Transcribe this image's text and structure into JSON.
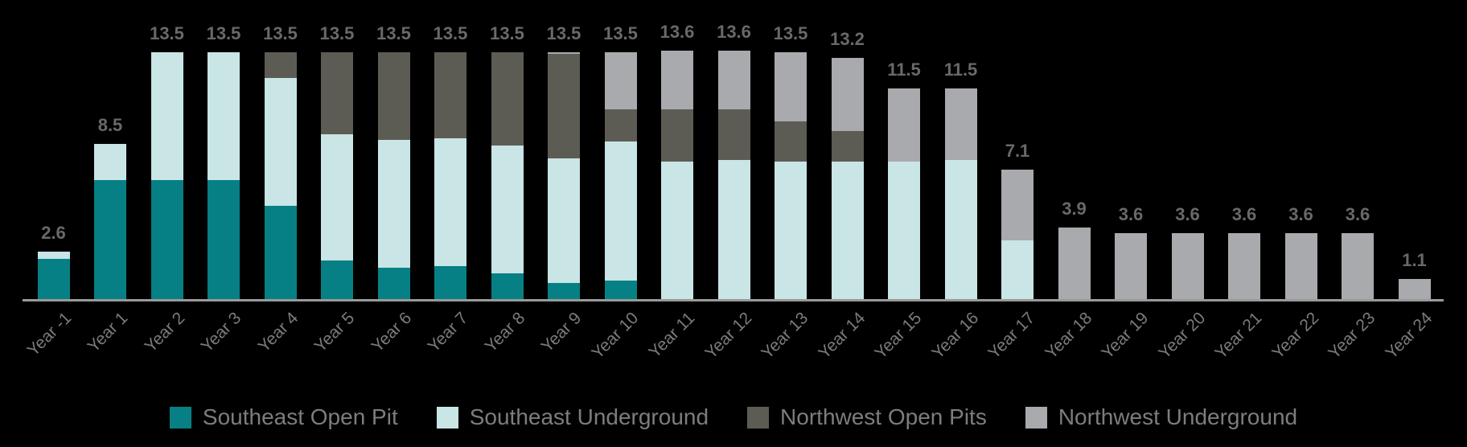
{
  "chart_data": {
    "type": "bar",
    "stacked": true,
    "title": "",
    "xlabel": "",
    "ylabel": "",
    "grid": false,
    "legend_position": "bottom",
    "ylim": [
      0,
      14.5
    ],
    "background_color": "#000000",
    "axis_line_color": "#9A9A9A",
    "value_label_color": "#696969",
    "tick_label_color": "#7B7B7B",
    "legend_text_color": "#7D7D7D",
    "categories": [
      "Year -1",
      "Year 1",
      "Year 2",
      "Year 3",
      "Year 4",
      "Year 5",
      "Year 6",
      "Year 7",
      "Year 8",
      "Year 9",
      "Year 10",
      "Year 11",
      "Year 12",
      "Year 13",
      "Year 14",
      "Year 15",
      "Year 16",
      "Year 17",
      "Year 18",
      "Year 19",
      "Year 20",
      "Year 21",
      "Year 22",
      "Year 23",
      "Year 24"
    ],
    "series": [
      {
        "name": "Southeast Open Pit",
        "color": "#068084",
        "values": [
          2.2,
          6.5,
          6.5,
          6.5,
          5.1,
          2.1,
          1.7,
          1.8,
          1.4,
          0.9,
          1.0,
          0,
          0,
          0,
          0,
          0,
          0,
          0,
          0,
          0,
          0,
          0,
          0,
          0,
          0
        ]
      },
      {
        "name": "Southeast Underground",
        "color": "#C9E5E5",
        "values": [
          0.4,
          2.0,
          7.0,
          7.0,
          7.0,
          6.9,
          7.0,
          7.0,
          7.0,
          6.8,
          7.6,
          7.5,
          7.6,
          7.5,
          7.5,
          7.5,
          7.6,
          3.2,
          0,
          0,
          0,
          0,
          0,
          0,
          0
        ]
      },
      {
        "name": "Northwest Open Pits",
        "color": "#5C5C54",
        "values": [
          0,
          0,
          0,
          0,
          1.4,
          4.5,
          4.8,
          4.7,
          5.1,
          5.7,
          1.8,
          2.9,
          2.8,
          2.2,
          1.7,
          0,
          0,
          0,
          0,
          0,
          0,
          0,
          0,
          0,
          0
        ]
      },
      {
        "name": "Northwest Underground",
        "color": "#A8AAAD",
        "values": [
          0,
          0,
          0,
          0,
          0,
          0,
          0,
          0,
          0,
          0.1,
          3.1,
          3.2,
          3.2,
          3.8,
          4.0,
          4.0,
          3.9,
          3.9,
          3.9,
          3.6,
          3.6,
          3.6,
          3.6,
          3.6,
          1.1
        ]
      }
    ],
    "totals": [
      2.6,
      8.5,
      13.5,
      13.5,
      13.5,
      13.5,
      13.5,
      13.5,
      13.5,
      13.5,
      13.5,
      13.6,
      13.6,
      13.5,
      13.2,
      11.5,
      11.5,
      7.1,
      3.9,
      3.6,
      3.6,
      3.6,
      3.6,
      3.6,
      1.1
    ],
    "total_labels": [
      "2.6",
      "8.5",
      "13.5",
      "13.5",
      "13.5",
      "13.5",
      "13.5",
      "13.5",
      "13.5",
      "13.5",
      "13.5",
      "13.6",
      "13.6",
      "13.5",
      "13.2",
      "11.5",
      "11.5",
      "7.1",
      "3.9",
      "3.6",
      "3.6",
      "3.6",
      "3.6",
      "3.6",
      "1.1"
    ]
  }
}
